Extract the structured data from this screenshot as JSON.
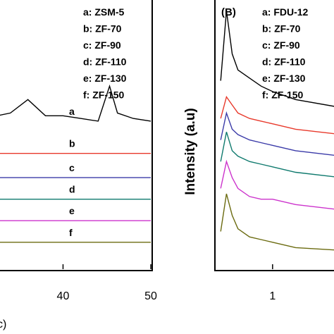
{
  "chart_data": [
    {
      "panel": "",
      "type": "line",
      "xlabel": "",
      "ylabel": "",
      "xlim": [
        28,
        50
      ],
      "x_ticks": [
        "40",
        "50"
      ],
      "legend": [
        "a: ZSM-5",
        "b: ZF-70",
        "c: ZF-90",
        "d: ZF-110",
        "e: ZF-130",
        "f: ZF-150"
      ],
      "series": [
        {
          "label": "a",
          "color": "#000000",
          "x": [
            28,
            31,
            34,
            36,
            38,
            40,
            42,
            44,
            45.3,
            46.2,
            48,
            50
          ],
          "y": [
            0.55,
            0.56,
            0.58,
            0.63,
            0.57,
            0.57,
            0.56,
            0.55,
            0.68,
            0.58,
            0.56,
            0.55
          ]
        },
        {
          "label": "b",
          "color": "#e8392b",
          "x": [
            28,
            50
          ],
          "y": [
            0.43,
            0.43
          ]
        },
        {
          "label": "c",
          "color": "#3a3aa8",
          "x": [
            28,
            50
          ],
          "y": [
            0.34,
            0.34
          ]
        },
        {
          "label": "d",
          "color": "#0f7a6e",
          "x": [
            28,
            50
          ],
          "y": [
            0.26,
            0.26
          ]
        },
        {
          "label": "e",
          "color": "#cc33cc",
          "x": [
            28,
            50
          ],
          "y": [
            0.18,
            0.18
          ]
        },
        {
          "label": "f",
          "color": "#6b6b10",
          "x": [
            28,
            50
          ],
          "y": [
            0.1,
            0.1
          ]
        }
      ]
    },
    {
      "panel": "(B)",
      "type": "line",
      "xlabel": "",
      "ylabel": "Intensity (a.u)",
      "xlim": [
        0.5,
        1.6
      ],
      "x_ticks": [
        "1"
      ],
      "legend": [
        "a: FDU-12",
        "b: ZF-70",
        "c: ZF-90",
        "d: ZF-110",
        "e: ZF-130",
        "f: ZF-150"
      ],
      "series": [
        {
          "label": "a",
          "color": "#000000",
          "x": [
            0.55,
            0.6,
            0.65,
            0.7,
            0.8,
            0.9,
            1.0,
            1.2,
            1.6
          ],
          "y": [
            0.7,
            0.96,
            0.8,
            0.74,
            0.71,
            0.68,
            0.66,
            0.63,
            0.6
          ]
        },
        {
          "label": "b",
          "color": "#e8392b",
          "x": [
            0.55,
            0.6,
            0.65,
            0.7,
            0.8,
            0.9,
            1.0,
            1.2,
            1.6
          ],
          "y": [
            0.56,
            0.64,
            0.61,
            0.58,
            0.56,
            0.55,
            0.54,
            0.52,
            0.5
          ]
        },
        {
          "label": "c",
          "color": "#3a3aa8",
          "x": [
            0.55,
            0.6,
            0.65,
            0.7,
            0.8,
            0.9,
            1.0,
            1.2,
            1.6
          ],
          "y": [
            0.48,
            0.58,
            0.52,
            0.5,
            0.48,
            0.47,
            0.46,
            0.44,
            0.42
          ]
        },
        {
          "label": "d",
          "color": "#0f7a6e",
          "x": [
            0.55,
            0.6,
            0.65,
            0.7,
            0.8,
            0.9,
            1.0,
            1.2,
            1.6
          ],
          "y": [
            0.4,
            0.51,
            0.44,
            0.42,
            0.4,
            0.39,
            0.38,
            0.36,
            0.34
          ]
        },
        {
          "label": "e",
          "color": "#cc33cc",
          "x": [
            0.55,
            0.6,
            0.65,
            0.7,
            0.8,
            0.9,
            1.0,
            1.2,
            1.6
          ],
          "y": [
            0.3,
            0.4,
            0.34,
            0.3,
            0.27,
            0.26,
            0.26,
            0.24,
            0.22
          ]
        },
        {
          "label": "f",
          "color": "#6b6b10",
          "x": [
            0.55,
            0.6,
            0.65,
            0.7,
            0.8,
            0.9,
            1.0,
            1.2,
            1.6
          ],
          "y": [
            0.14,
            0.28,
            0.2,
            0.15,
            0.12,
            0.11,
            0.1,
            0.08,
            0.07
          ]
        }
      ]
    }
  ],
  "figure": {
    "left_partial_panel_label": "",
    "footer_partial_label": "c)"
  }
}
